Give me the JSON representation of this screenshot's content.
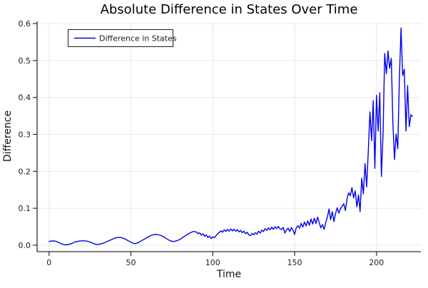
{
  "figure": {
    "title": "Absolute Difference in States Over Time",
    "xlabel": "Time",
    "ylabel": "Difference",
    "legend": {
      "label": "Difference in States"
    }
  },
  "colors": {
    "series_blue": "#0000ee",
    "grid": "#e5e5e5",
    "spine": "#2e2e2e",
    "background": "#ffffff",
    "legend_border": "#1a1a1a",
    "text": "#1a1a1a"
  },
  "chart_data": {
    "type": "line",
    "title": "Absolute Difference in States Over Time",
    "xlabel": "Time",
    "ylabel": "Difference",
    "grid": true,
    "legend_position": "top-left",
    "xlim": [
      -7.3,
      227.1
    ],
    "ylim": [
      -0.0174,
      0.6059
    ],
    "x_ticks": [
      0,
      50,
      100,
      150,
      200
    ],
    "x_tick_labels": [
      "0",
      "50",
      "100",
      "150",
      "200"
    ],
    "y_ticks": [
      0.0,
      0.1,
      0.2,
      0.3,
      0.4,
      0.5,
      0.6
    ],
    "y_tick_labels": [
      "0.0",
      "0.1",
      "0.2",
      "0.3",
      "0.4",
      "0.5",
      "0.6"
    ],
    "series": [
      {
        "name": "Difference in States",
        "color": "#0000ee",
        "points": [
          [
            0,
            0.01
          ],
          [
            2,
            0.012
          ],
          [
            4,
            0.011
          ],
          [
            6,
            0.007
          ],
          [
            8,
            0.003
          ],
          [
            10,
            0.001
          ],
          [
            12,
            0.002
          ],
          [
            14,
            0.005
          ],
          [
            16,
            0.009
          ],
          [
            18,
            0.011
          ],
          [
            20,
            0.012
          ],
          [
            22,
            0.012
          ],
          [
            24,
            0.01
          ],
          [
            26,
            0.007
          ],
          [
            28,
            0.003
          ],
          [
            30,
            0.002
          ],
          [
            32,
            0.004
          ],
          [
            34,
            0.007
          ],
          [
            36,
            0.011
          ],
          [
            38,
            0.015
          ],
          [
            40,
            0.019
          ],
          [
            42,
            0.021
          ],
          [
            44,
            0.021
          ],
          [
            46,
            0.018
          ],
          [
            48,
            0.013
          ],
          [
            50,
            0.008
          ],
          [
            52,
            0.004
          ],
          [
            54,
            0.006
          ],
          [
            56,
            0.011
          ],
          [
            58,
            0.016
          ],
          [
            60,
            0.021
          ],
          [
            62,
            0.026
          ],
          [
            64,
            0.029
          ],
          [
            66,
            0.029
          ],
          [
            68,
            0.027
          ],
          [
            70,
            0.023
          ],
          [
            72,
            0.017
          ],
          [
            74,
            0.012
          ],
          [
            76,
            0.01
          ],
          [
            78,
            0.012
          ],
          [
            80,
            0.016
          ],
          [
            82,
            0.022
          ],
          [
            84,
            0.028
          ],
          [
            86,
            0.033
          ],
          [
            88,
            0.037
          ],
          [
            90,
            0.036
          ],
          [
            91,
            0.031
          ],
          [
            92,
            0.034
          ],
          [
            93,
            0.027
          ],
          [
            94,
            0.031
          ],
          [
            95,
            0.024
          ],
          [
            96,
            0.028
          ],
          [
            97,
            0.021
          ],
          [
            98,
            0.025
          ],
          [
            99,
            0.018
          ],
          [
            100,
            0.023
          ],
          [
            101,
            0.02
          ],
          [
            102,
            0.026
          ],
          [
            103,
            0.031
          ],
          [
            104,
            0.035
          ],
          [
            105,
            0.039
          ],
          [
            106,
            0.035
          ],
          [
            107,
            0.042
          ],
          [
            108,
            0.037
          ],
          [
            109,
            0.043
          ],
          [
            110,
            0.038
          ],
          [
            111,
            0.044
          ],
          [
            112,
            0.039
          ],
          [
            113,
            0.043
          ],
          [
            114,
            0.038
          ],
          [
            115,
            0.042
          ],
          [
            116,
            0.036
          ],
          [
            117,
            0.04
          ],
          [
            118,
            0.034
          ],
          [
            119,
            0.038
          ],
          [
            120,
            0.031
          ],
          [
            121,
            0.035
          ],
          [
            122,
            0.028
          ],
          [
            123,
            0.026
          ],
          [
            124,
            0.032
          ],
          [
            125,
            0.028
          ],
          [
            126,
            0.034
          ],
          [
            127,
            0.03
          ],
          [
            128,
            0.038
          ],
          [
            129,
            0.033
          ],
          [
            130,
            0.041
          ],
          [
            131,
            0.037
          ],
          [
            132,
            0.045
          ],
          [
            133,
            0.04
          ],
          [
            134,
            0.047
          ],
          [
            135,
            0.042
          ],
          [
            136,
            0.049
          ],
          [
            137,
            0.043
          ],
          [
            138,
            0.05
          ],
          [
            139,
            0.045
          ],
          [
            140,
            0.051
          ],
          [
            141,
            0.045
          ],
          [
            142,
            0.042
          ],
          [
            143,
            0.048
          ],
          [
            144,
            0.033
          ],
          [
            145,
            0.041
          ],
          [
            146,
            0.046
          ],
          [
            147,
            0.037
          ],
          [
            148,
            0.048
          ],
          [
            149,
            0.041
          ],
          [
            150,
            0.029
          ],
          [
            151,
            0.047
          ],
          [
            152,
            0.053
          ],
          [
            153,
            0.046
          ],
          [
            154,
            0.059
          ],
          [
            155,
            0.049
          ],
          [
            156,
            0.063
          ],
          [
            157,
            0.052
          ],
          [
            158,
            0.066
          ],
          [
            159,
            0.054
          ],
          [
            160,
            0.071
          ],
          [
            161,
            0.057
          ],
          [
            162,
            0.073
          ],
          [
            163,
            0.059
          ],
          [
            164,
            0.076
          ],
          [
            165,
            0.061
          ],
          [
            166,
            0.047
          ],
          [
            167,
            0.056
          ],
          [
            168,
            0.043
          ],
          [
            169,
            0.061
          ],
          [
            170,
            0.076
          ],
          [
            171,
            0.098
          ],
          [
            172,
            0.069
          ],
          [
            173,
            0.091
          ],
          [
            174,
            0.064
          ],
          [
            175,
            0.086
          ],
          [
            176,
            0.101
          ],
          [
            177,
            0.087
          ],
          [
            178,
            0.099
          ],
          [
            179,
            0.106
          ],
          [
            180,
            0.112
          ],
          [
            181,
            0.094
          ],
          [
            182,
            0.126
          ],
          [
            183,
            0.142
          ],
          [
            184,
            0.134
          ],
          [
            185,
            0.156
          ],
          [
            186,
            0.128
          ],
          [
            187,
            0.147
          ],
          [
            188,
            0.104
          ],
          [
            189,
            0.136
          ],
          [
            190,
            0.091
          ],
          [
            191,
            0.181
          ],
          [
            192,
            0.139
          ],
          [
            193,
            0.221
          ],
          [
            194,
            0.158
          ],
          [
            195,
            0.254
          ],
          [
            196,
            0.361
          ],
          [
            197,
            0.283
          ],
          [
            198,
            0.391
          ],
          [
            199,
            0.208
          ],
          [
            200,
            0.406
          ],
          [
            201,
            0.309
          ],
          [
            202,
            0.413
          ],
          [
            203,
            0.186
          ],
          [
            204,
            0.302
          ],
          [
            205,
            0.519
          ],
          [
            206,
            0.464
          ],
          [
            207,
            0.526
          ],
          [
            208,
            0.479
          ],
          [
            209,
            0.506
          ],
          [
            210,
            0.331
          ],
          [
            211,
            0.232
          ],
          [
            212,
            0.301
          ],
          [
            213,
            0.261
          ],
          [
            214,
            0.451
          ],
          [
            215,
            0.588
          ],
          [
            216,
            0.459
          ],
          [
            217,
            0.476
          ],
          [
            218,
            0.309
          ],
          [
            219,
            0.432
          ],
          [
            220,
            0.321
          ],
          [
            221,
            0.353
          ],
          [
            222,
            0.349
          ]
        ]
      }
    ]
  }
}
